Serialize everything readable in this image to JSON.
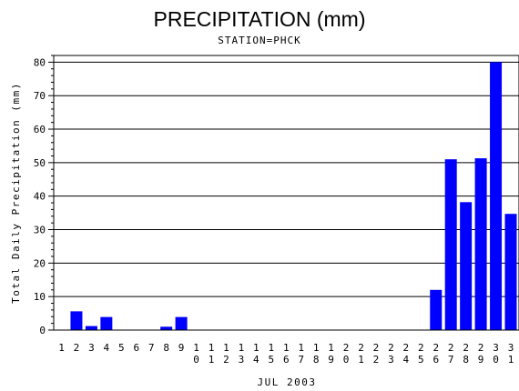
{
  "chart_data": {
    "type": "bar",
    "title": "PRECIPITATION (mm)",
    "subtitle": "STATION=PHCK",
    "ylabel": "Total Daily Precipitation (mm)",
    "xlabel": "JUL 2003",
    "ylim": [
      0,
      82
    ],
    "yticks": [
      0,
      10,
      20,
      30,
      40,
      50,
      60,
      70,
      80
    ],
    "grid": "horizontal",
    "bar_color": "#0000ff",
    "categories": [
      "1",
      "2",
      "3",
      "4",
      "5",
      "6",
      "7",
      "8",
      "9",
      "10",
      "11",
      "12",
      "13",
      "14",
      "15",
      "16",
      "17",
      "18",
      "19",
      "20",
      "21",
      "22",
      "23",
      "24",
      "25",
      "26",
      "27",
      "28",
      "29",
      "30",
      "31"
    ],
    "values": [
      0,
      5.6,
      1.2,
      3.9,
      0,
      0,
      0,
      1.0,
      3.9,
      0,
      0,
      0,
      0,
      0,
      0,
      0,
      0,
      0,
      0,
      0,
      0,
      0,
      0,
      0,
      0,
      12.0,
      51.0,
      38.2,
      51.3,
      80.0,
      34.7
    ]
  }
}
